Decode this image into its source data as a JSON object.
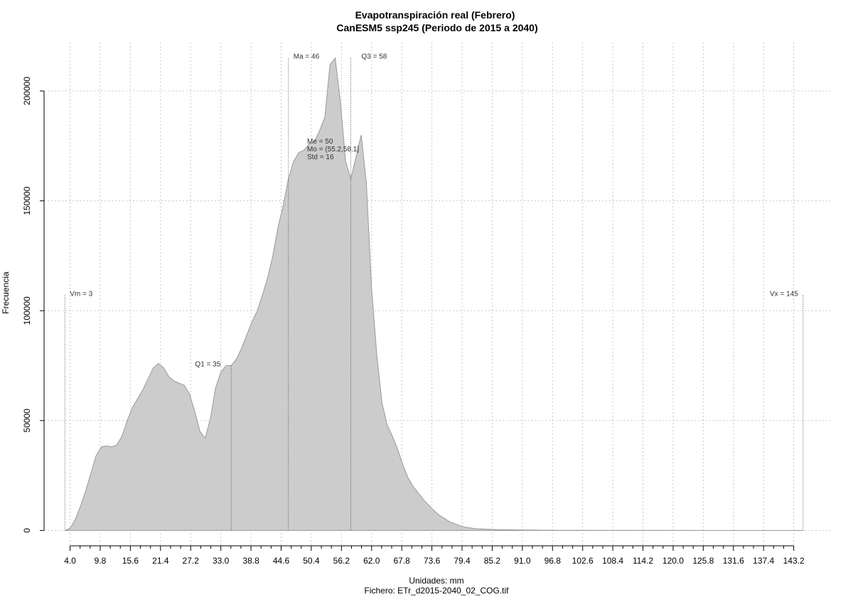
{
  "chart_data": {
    "type": "area",
    "title": "Evapotranspiración real (Febrero)",
    "subtitle": "CanESM5 ssp245 (Periodo de 2015 a 2040)",
    "xlabel": "Unidades: mm",
    "ylabel": "Frecuencia",
    "footer": "Fichero: ETr_d2015-2040_02_COG.tif",
    "xlim": [
      -1.0,
      150.5
    ],
    "ylim": [
      -7000,
      222000
    ],
    "grid": true,
    "fill_color": "#cccccc",
    "line_color": "#999999",
    "x_ticks": [
      "4.0",
      "9.8",
      "15.6",
      "21.4",
      "27.2",
      "33.0",
      "38.8",
      "44.6",
      "50.4",
      "56.2",
      "62.0",
      "67.8",
      "73.6",
      "79.4",
      "85.2",
      "91.0",
      "96.8",
      "102.6",
      "108.4",
      "114.2",
      "120.0",
      "125.8",
      "131.6",
      "137.4",
      "143.2"
    ],
    "y_ticks": [
      0,
      50000,
      100000,
      150000,
      200000
    ],
    "y_tick_labels": [
      "0",
      "50000",
      "100000",
      "150000",
      "200000"
    ],
    "x": [
      3,
      4,
      5,
      6,
      7,
      8,
      9,
      10,
      11,
      12,
      13,
      14,
      15,
      16,
      17,
      18,
      19,
      20,
      21,
      22,
      23,
      24,
      25,
      26,
      27,
      28,
      29,
      30,
      31,
      32,
      33,
      34,
      35,
      36,
      37,
      38,
      39,
      40,
      41,
      42,
      43,
      44,
      45,
      46,
      47,
      48,
      49,
      50,
      51,
      52,
      53,
      54,
      55,
      56,
      57,
      58,
      59,
      60,
      61,
      62,
      63,
      64,
      65,
      66,
      67,
      68,
      69,
      70,
      71,
      72,
      73,
      74,
      75,
      76,
      77,
      78,
      79,
      80,
      82,
      84,
      86,
      88,
      90,
      92,
      94,
      96,
      98,
      100,
      105,
      110,
      120,
      130,
      140,
      145
    ],
    "y": [
      0,
      1000,
      5000,
      11000,
      18000,
      26000,
      34000,
      38000,
      38500,
      38000,
      39000,
      43000,
      50000,
      56000,
      60000,
      64000,
      69000,
      74000,
      76000,
      74000,
      70000,
      68000,
      67000,
      66000,
      62000,
      54000,
      45000,
      42000,
      51000,
      65000,
      72000,
      75000,
      75000,
      78000,
      83000,
      89000,
      95000,
      100000,
      107000,
      115000,
      125000,
      138000,
      148000,
      160000,
      168000,
      172000,
      173000,
      176000,
      177000,
      182000,
      188000,
      212000,
      215000,
      195000,
      168000,
      160000,
      170000,
      180000,
      158000,
      110000,
      80000,
      58000,
      48000,
      43000,
      37000,
      30000,
      24000,
      20000,
      17000,
      14000,
      11500,
      9000,
      7000,
      5500,
      4000,
      3000,
      2200,
      1500,
      800,
      600,
      400,
      300,
      250,
      200,
      150,
      100,
      80,
      60,
      40,
      30,
      20,
      10,
      5,
      0
    ],
    "stats": {
      "vm": {
        "label": "Vm = 3",
        "x": 3
      },
      "q1": {
        "label": "Q1 = 35",
        "x": 35
      },
      "ma": {
        "label": "Ma = 46",
        "x": 46
      },
      "q3": {
        "label": "Q3 = 58",
        "x": 58
      },
      "vx": {
        "label": "Vx = 145",
        "x": 145
      },
      "box": [
        "Me = 50",
        "Mo = (55.2,58.1]",
        "Std = 16"
      ]
    }
  }
}
